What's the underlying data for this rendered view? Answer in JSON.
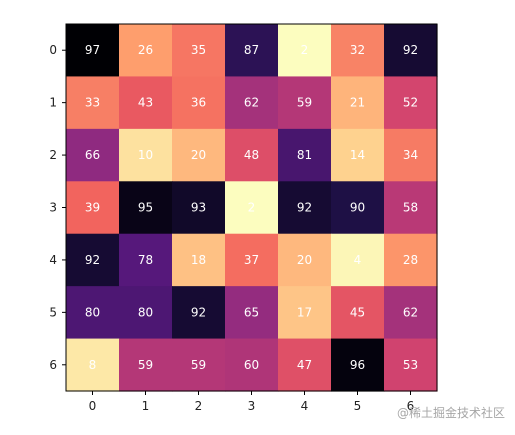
{
  "chart_data": {
    "type": "heatmap",
    "title": "",
    "xlabel": "",
    "ylabel": "",
    "colormap": "magma",
    "x_categories": [
      "0",
      "1",
      "2",
      "3",
      "4",
      "5",
      "6"
    ],
    "y_categories": [
      "0",
      "1",
      "2",
      "3",
      "4",
      "5",
      "6"
    ],
    "values": [
      [
        97,
        26,
        35,
        87,
        2,
        32,
        92
      ],
      [
        33,
        43,
        36,
        62,
        59,
        21,
        52
      ],
      [
        66,
        10,
        20,
        48,
        81,
        14,
        34
      ],
      [
        39,
        95,
        93,
        2,
        92,
        90,
        58
      ],
      [
        92,
        78,
        18,
        37,
        20,
        4,
        28
      ],
      [
        80,
        80,
        92,
        65,
        17,
        45,
        62
      ],
      [
        8,
        59,
        59,
        60,
        47,
        96,
        53
      ]
    ],
    "annotation_color": "#ffffff",
    "grid": false
  },
  "watermark": {
    "text": "@稀土掘金技术社区"
  }
}
